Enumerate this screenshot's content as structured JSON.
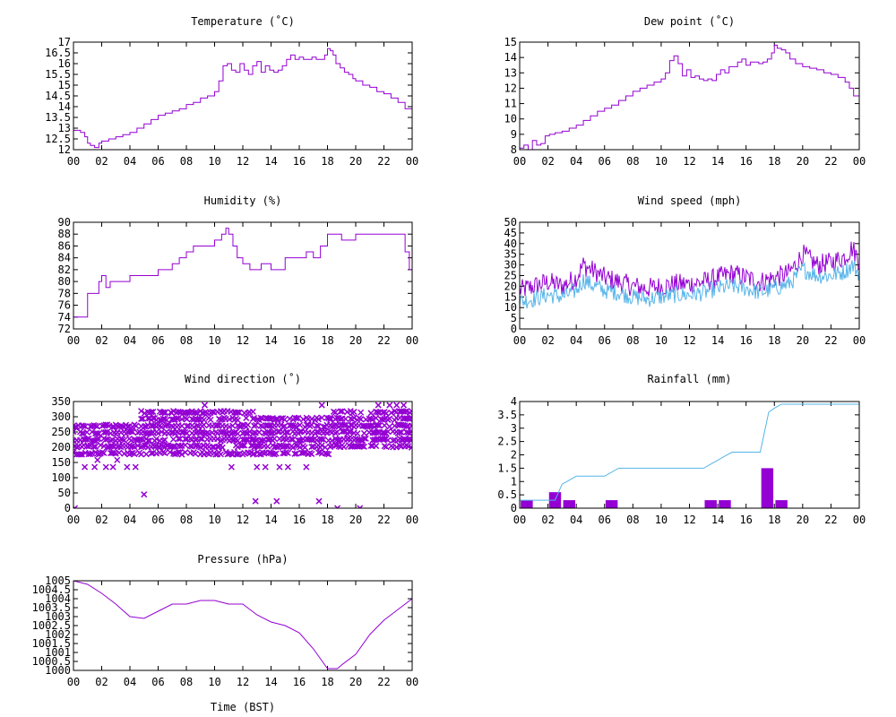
{
  "colors": {
    "primary": "#9400d3",
    "secondary": "#56b4e9",
    "axis": "#000000"
  },
  "x_ticks": [
    "00",
    "02",
    "04",
    "06",
    "08",
    "10",
    "12",
    "14",
    "16",
    "18",
    "20",
    "22",
    "00"
  ],
  "chart_data": [
    {
      "type": "line",
      "title": "Temperature (˚C)",
      "xlabel": "",
      "ylabel": "",
      "xlim": [
        0,
        24
      ],
      "ylim": [
        12,
        17
      ],
      "y_ticks": [
        "12",
        "12.5",
        "13",
        "13.5",
        "14",
        "14.5",
        "15",
        "15.5",
        "16",
        "16.5",
        "17"
      ],
      "series": [
        {
          "color": "#9400d3",
          "step": true,
          "x": [
            0,
            0.5,
            0.8,
            1.0,
            1.2,
            1.5,
            1.8,
            2.0,
            2.5,
            3.0,
            3.5,
            4.0,
            4.5,
            5.0,
            5.5,
            6.0,
            6.5,
            7.0,
            7.5,
            8.0,
            8.5,
            9.0,
            9.5,
            10.0,
            10.3,
            10.6,
            10.9,
            11.2,
            11.5,
            11.8,
            12.1,
            12.4,
            12.7,
            13.0,
            13.3,
            13.6,
            13.9,
            14.2,
            14.5,
            14.8,
            15.1,
            15.4,
            15.7,
            16.0,
            16.3,
            16.6,
            16.9,
            17.2,
            17.5,
            17.8,
            18.0,
            18.2,
            18.4,
            18.6,
            18.9,
            19.2,
            19.5,
            19.8,
            20.0,
            20.5,
            21.0,
            21.5,
            22.0,
            22.5,
            23.0,
            23.5,
            24.0
          ],
          "y": [
            12.9,
            12.8,
            12.6,
            12.3,
            12.2,
            12.1,
            12.3,
            12.4,
            12.5,
            12.6,
            12.7,
            12.8,
            13.0,
            13.2,
            13.4,
            13.6,
            13.7,
            13.8,
            13.9,
            14.1,
            14.2,
            14.4,
            14.5,
            14.7,
            15.2,
            15.9,
            16.0,
            15.7,
            15.6,
            16.0,
            15.7,
            15.5,
            15.9,
            16.1,
            15.6,
            15.9,
            15.7,
            15.6,
            15.7,
            15.9,
            16.2,
            16.4,
            16.2,
            16.3,
            16.2,
            16.2,
            16.3,
            16.2,
            16.2,
            16.4,
            16.7,
            16.6,
            16.4,
            16.0,
            15.8,
            15.6,
            15.5,
            15.3,
            15.2,
            15.0,
            14.9,
            14.7,
            14.6,
            14.4,
            14.2,
            13.9,
            13.9
          ]
        }
      ]
    },
    {
      "type": "line",
      "title": "Dew point (˚C)",
      "xlabel": "",
      "ylabel": "",
      "xlim": [
        0,
        24
      ],
      "ylim": [
        8,
        15
      ],
      "y_ticks": [
        "8",
        "9",
        "10",
        "11",
        "12",
        "13",
        "14",
        "15"
      ],
      "series": [
        {
          "color": "#9400d3",
          "step": true,
          "x": [
            0,
            0.3,
            0.6,
            0.9,
            1.2,
            1.5,
            1.8,
            2.1,
            2.5,
            3.0,
            3.5,
            4.0,
            4.5,
            5.0,
            5.5,
            6.0,
            6.5,
            7.0,
            7.5,
            8.0,
            8.5,
            9.0,
            9.5,
            10.0,
            10.3,
            10.6,
            10.9,
            11.2,
            11.5,
            11.8,
            12.1,
            12.4,
            12.7,
            13.0,
            13.3,
            13.6,
            13.9,
            14.2,
            14.5,
            14.8,
            15.1,
            15.4,
            15.7,
            16.0,
            16.3,
            16.6,
            16.9,
            17.2,
            17.5,
            17.8,
            18.0,
            18.2,
            18.5,
            18.8,
            19.1,
            19.5,
            20.0,
            20.5,
            21.0,
            21.5,
            22.0,
            22.5,
            23.0,
            23.3,
            23.6,
            24.0
          ],
          "y": [
            8.1,
            8.3,
            8.0,
            8.6,
            8.3,
            8.4,
            8.9,
            9.0,
            9.1,
            9.2,
            9.4,
            9.6,
            9.9,
            10.2,
            10.5,
            10.7,
            10.9,
            11.2,
            11.5,
            11.8,
            12.0,
            12.2,
            12.4,
            12.6,
            13.0,
            13.8,
            14.1,
            13.6,
            12.8,
            13.2,
            12.7,
            12.8,
            12.6,
            12.5,
            12.6,
            12.5,
            12.9,
            13.2,
            13.0,
            13.4,
            13.4,
            13.7,
            13.9,
            13.5,
            13.7,
            13.7,
            13.6,
            13.7,
            13.9,
            14.3,
            14.8,
            14.6,
            14.5,
            14.3,
            13.9,
            13.6,
            13.4,
            13.3,
            13.2,
            13.0,
            12.9,
            12.7,
            12.4,
            12.0,
            11.5,
            10.8
          ]
        }
      ]
    },
    {
      "type": "line",
      "title": "Humidity (%)",
      "xlabel": "",
      "ylabel": "",
      "xlim": [
        0,
        24
      ],
      "ylim": [
        72,
        90
      ],
      "y_ticks": [
        "72",
        "74",
        "76",
        "78",
        "80",
        "82",
        "84",
        "86",
        "88",
        "90"
      ],
      "series": [
        {
          "color": "#9400d3",
          "step": true,
          "x": [
            0,
            0.6,
            1.0,
            1.5,
            1.8,
            2.0,
            2.3,
            2.6,
            3.0,
            4.0,
            5.0,
            6.0,
            6.5,
            7.0,
            7.5,
            8.0,
            8.5,
            9.0,
            10.0,
            10.5,
            10.8,
            11.0,
            11.3,
            11.6,
            12.0,
            12.5,
            13.0,
            13.3,
            14.0,
            14.5,
            15.0,
            15.5,
            16.0,
            16.5,
            17.0,
            17.5,
            18.0,
            18.5,
            19.0,
            19.5,
            20.0,
            21.0,
            22.0,
            23.0,
            23.5,
            23.8,
            24.0
          ],
          "y": [
            74,
            74,
            78,
            78,
            80,
            81,
            79,
            80,
            80,
            81,
            81,
            82,
            82,
            83,
            84,
            85,
            86,
            86,
            87,
            88,
            89,
            88,
            86,
            84,
            83,
            82,
            82,
            83,
            82,
            82,
            84,
            84,
            84,
            85,
            84,
            86,
            88,
            88,
            87,
            87,
            88,
            88,
            88,
            88,
            85,
            82,
            82
          ]
        }
      ]
    },
    {
      "type": "line",
      "title": "Wind speed (mph)",
      "xlabel": "",
      "ylabel": "",
      "xlim": [
        0,
        24
      ],
      "ylim": [
        0,
        50
      ],
      "y_ticks": [
        "0",
        "5",
        "10",
        "15",
        "20",
        "25",
        "30",
        "35",
        "40",
        "45",
        "50"
      ],
      "series": [
        {
          "color": "#9400d3",
          "noise": 5,
          "x": [
            0,
            1,
            2,
            3,
            4,
            4.5,
            5,
            6,
            7,
            8,
            9,
            10,
            11,
            12,
            13,
            14,
            15,
            16,
            17,
            18,
            19,
            19.5,
            20,
            21,
            22,
            23,
            23.5,
            24
          ],
          "y": [
            18,
            20,
            22,
            20,
            24,
            30,
            28,
            24,
            22,
            20,
            19,
            20,
            21,
            21,
            22,
            24,
            26,
            24,
            22,
            24,
            26,
            30,
            35,
            30,
            31,
            34,
            38,
            32
          ]
        },
        {
          "color": "#56b4e9",
          "noise": 4,
          "x": [
            0,
            1,
            2,
            3,
            4,
            4.5,
            5,
            6,
            7,
            8,
            9,
            10,
            11,
            12,
            13,
            14,
            15,
            16,
            17,
            18,
            19,
            19.5,
            20,
            21,
            22,
            23,
            23.5,
            24
          ],
          "y": [
            13,
            14,
            16,
            15,
            18,
            23,
            21,
            18,
            17,
            15,
            14,
            15,
            16,
            16,
            17,
            19,
            20,
            19,
            17,
            19,
            21,
            24,
            28,
            25,
            25,
            27,
            30,
            26
          ]
        }
      ]
    },
    {
      "type": "scatter",
      "title": "Wind direction (˚)",
      "xlabel": "",
      "ylabel": "",
      "xlim": [
        0,
        24
      ],
      "ylim": [
        0,
        350
      ],
      "y_ticks": [
        "0",
        "50",
        "100",
        "150",
        "200",
        "250",
        "300",
        "350"
      ],
      "series": [
        {
          "color": "#9400d3",
          "marker": "x",
          "bands": [
            {
              "x0": 0,
              "x1": 4.8,
              "values": [
                180,
                203,
                225,
                248,
                270
              ]
            },
            {
              "x0": 4.8,
              "x1": 12.8,
              "values": [
                180,
                203,
                225,
                248,
                270,
                293,
                315
              ]
            },
            {
              "x0": 12.8,
              "x1": 18.2,
              "values": [
                180,
                203,
                225,
                248,
                270,
                293
              ]
            },
            {
              "x0": 18.2,
              "x1": 24,
              "values": [
                203,
                225,
                248,
                270,
                293,
                315
              ]
            }
          ],
          "x": [
            0.1,
            0.8,
            1.5,
            1.7,
            2.3,
            2.8,
            3.1,
            3.8,
            4.4,
            5.0,
            6.5,
            6.9,
            7.6,
            8.3,
            9.3,
            11.2,
            12.9,
            13.0,
            13.6,
            14.4,
            14.6,
            15.2,
            16.5,
            17.4,
            17.6,
            18.7,
            20.3,
            21.6,
            22.4,
            22.9,
            23.4
          ],
          "y": [
            0,
            135,
            135,
            158,
            135,
            135,
            158,
            135,
            135,
            45,
            315,
            315,
            315,
            315,
            338,
            135,
            23,
            135,
            135,
            23,
            135,
            135,
            135,
            23,
            338,
            0,
            0,
            338,
            338,
            338,
            338
          ]
        }
      ]
    },
    {
      "type": "bar",
      "title": "Rainfall (mm)",
      "xlabel": "",
      "ylabel": "",
      "xlim": [
        0,
        24
      ],
      "ylim": [
        0,
        4
      ],
      "y_ticks": [
        "0",
        "0.5",
        "1",
        "1.5",
        "2",
        "2.5",
        "3",
        "3.5",
        "4"
      ],
      "bar_width": 0.85,
      "series": [
        {
          "color": "#9400d3",
          "kind": "bar",
          "x": [
            0.5,
            2.5,
            3.5,
            6.5,
            13.5,
            14.5,
            17.5,
            18.5
          ],
          "y": [
            0.3,
            0.6,
            0.3,
            0.3,
            0.3,
            0.3,
            1.5,
            0.3
          ]
        },
        {
          "color": "#56b4e9",
          "kind": "line",
          "x": [
            0,
            2.5,
            3,
            3.5,
            4,
            6,
            7,
            8,
            13,
            13.5,
            14.5,
            15,
            17,
            17.6,
            18,
            18.5,
            19,
            24
          ],
          "y": [
            0.3,
            0.3,
            0.9,
            1.05,
            1.2,
            1.2,
            1.5,
            1.5,
            1.5,
            1.65,
            1.95,
            2.1,
            2.1,
            3.6,
            3.75,
            3.9,
            3.9,
            3.9
          ]
        }
      ]
    },
    {
      "type": "line",
      "title": "Pressure (hPa)",
      "xlabel": "Time (BST)",
      "ylabel": "",
      "xlim": [
        0,
        24
      ],
      "ylim": [
        1000,
        1005
      ],
      "y_ticks": [
        "1000",
        "1000.5",
        "1001",
        "1001.5",
        "1002",
        "1002.5",
        "1003",
        "1003.5",
        "1004",
        "1004.5",
        "1005"
      ],
      "series": [
        {
          "color": "#9400d3",
          "x": [
            0,
            1,
            2,
            3,
            4,
            5,
            6,
            7,
            8,
            9,
            10,
            11,
            12,
            13,
            14,
            15,
            16,
            17,
            18,
            18.7,
            19,
            20,
            21,
            22,
            23,
            24
          ],
          "y": [
            1005,
            1004.8,
            1004.3,
            1003.7,
            1003.0,
            1002.9,
            1003.3,
            1003.7,
            1003.7,
            1003.9,
            1003.9,
            1003.7,
            1003.7,
            1003.1,
            1002.7,
            1002.5,
            1002.1,
            1001.2,
            1000.1,
            1000.1,
            1000.3,
            1000.9,
            1002.0,
            1002.8,
            1003.4,
            1004.0
          ]
        }
      ]
    }
  ]
}
